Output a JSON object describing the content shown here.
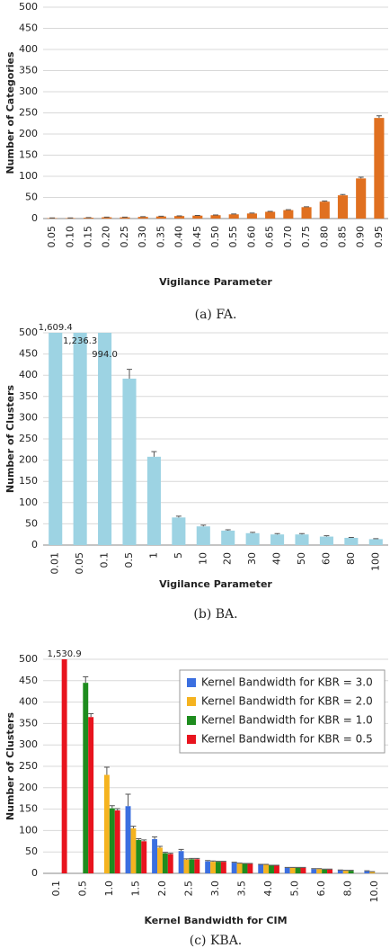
{
  "chart_data": [
    {
      "type": "bar",
      "caption": "(a) FA.",
      "x_label": "Vigilance Parameter",
      "y_label": "Number of Categories",
      "categories": [
        "0.05",
        "0.10",
        "0.15",
        "0.20",
        "0.25",
        "0.30",
        "0.35",
        "0.40",
        "0.45",
        "0.50",
        "0.55",
        "0.60",
        "0.65",
        "0.70",
        "0.75",
        "0.80",
        "0.85",
        "0.90",
        "0.95"
      ],
      "values": [
        1,
        1,
        2,
        3,
        3,
        4,
        5,
        6,
        7,
        8,
        10,
        12,
        16,
        20,
        27,
        40,
        55,
        95,
        238
      ],
      "errors": [
        0.5,
        0.5,
        0.5,
        0.5,
        0.5,
        0.5,
        0.5,
        0.5,
        0.5,
        0.5,
        1,
        1,
        1,
        1,
        1,
        1.5,
        2,
        3,
        5
      ],
      "color": "#e07020",
      "ylim": [
        0,
        500
      ],
      "yticks": [
        0,
        50,
        100,
        150,
        200,
        250,
        300,
        350,
        400,
        450,
        500
      ],
      "grid": true
    },
    {
      "type": "bar",
      "caption": "(b) BA.",
      "x_label": "Vigilance Parameter",
      "y_label": "Number of Clusters",
      "categories": [
        "0.01",
        "0.05",
        "0.1",
        "0.5",
        "1",
        "5",
        "10",
        "20",
        "30",
        "40",
        "50",
        "60",
        "80",
        "100"
      ],
      "values": [
        1609.4,
        1236.3,
        994.0,
        392,
        208,
        65,
        44,
        34,
        28,
        25,
        25,
        20,
        17,
        14
      ],
      "value_labels": [
        "1,609.4",
        "1,236.3",
        "994.0",
        null,
        null,
        null,
        null,
        null,
        null,
        null,
        null,
        null,
        null,
        null
      ],
      "errors": [
        null,
        null,
        null,
        22,
        12,
        3,
        3,
        2,
        2,
        2,
        2,
        2,
        1,
        1
      ],
      "color": "#9dd3e3",
      "ylim": [
        0,
        500
      ],
      "yticks": [
        0,
        50,
        100,
        150,
        200,
        250,
        300,
        350,
        400,
        450,
        500
      ],
      "grid": true
    },
    {
      "type": "grouped_bar",
      "caption": "(c) KBA.",
      "x_label": "Kernel Bandwidth for CIM",
      "y_label": "Number of Clusters",
      "categories": [
        "0.1",
        "0.5",
        "1.0",
        "1.5",
        "2.0",
        "2.5",
        "3.0",
        "3.5",
        "4.0",
        "5.0",
        "6.0",
        "8.0",
        "10.0"
      ],
      "series": [
        {
          "name": "Kernel Bandwidth for KBR = 3.0",
          "color": "#3b6fe0",
          "values": [
            null,
            null,
            null,
            157,
            80,
            52,
            28,
            25,
            20,
            13,
            10,
            7,
            5
          ],
          "errors": [
            null,
            null,
            null,
            28,
            5,
            4,
            2,
            1,
            1,
            1,
            1,
            1,
            1
          ]
        },
        {
          "name": "Kernel Bandwidth for KBR = 2.0",
          "color": "#f5b320",
          "values": [
            null,
            null,
            230,
            105,
            60,
            32,
            27,
            23,
            20,
            13,
            10,
            6,
            3
          ],
          "errors": [
            null,
            null,
            18,
            5,
            3,
            2,
            2,
            1,
            1,
            1,
            1,
            1,
            1
          ]
        },
        {
          "name": "Kernel Bandwidth for KBR = 1.0",
          "color": "#1e8c1e",
          "values": [
            null,
            445,
            152,
            78,
            47,
            33,
            27,
            22,
            18,
            13,
            9,
            6,
            null
          ],
          "errors": [
            null,
            14,
            6,
            3,
            2,
            2,
            1,
            1,
            1,
            1,
            1,
            1,
            null
          ]
        },
        {
          "name": "Kernel Bandwidth for KBR = 0.5",
          "color": "#e8141e",
          "values": [
            1530.9,
            365,
            147,
            75,
            45,
            33,
            27,
            22,
            18,
            13,
            9,
            null,
            null
          ],
          "errors": [
            null,
            8,
            4,
            3,
            2,
            2,
            1,
            1,
            1,
            1,
            1,
            null,
            null
          ],
          "value_labels": [
            "1,530.9",
            null,
            null,
            null,
            null,
            null,
            null,
            null,
            null,
            null,
            null,
            null,
            null
          ]
        }
      ],
      "legend": "upper right",
      "ylim": [
        0,
        500
      ],
      "yticks": [
        0,
        50,
        100,
        150,
        200,
        250,
        300,
        350,
        400,
        450,
        500
      ],
      "grid": true
    }
  ]
}
